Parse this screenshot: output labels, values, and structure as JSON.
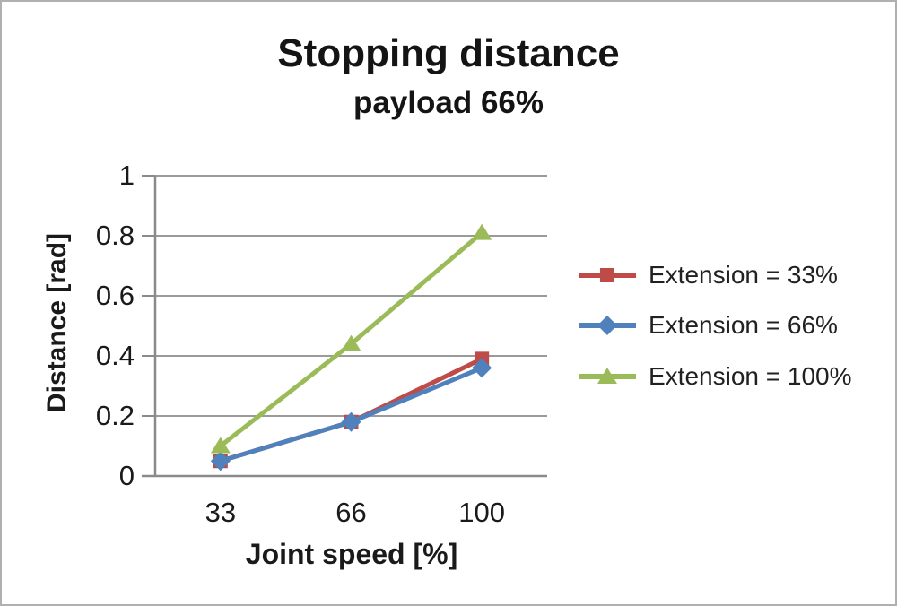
{
  "chart_data": {
    "type": "line",
    "title": "Stopping distance",
    "subtitle": "payload 66%",
    "xlabel": "Joint speed [%]",
    "ylabel": "Distance [rad]",
    "categories": [
      "33",
      "66",
      "100"
    ],
    "ylim": [
      0,
      1
    ],
    "ytick_values": [
      0,
      0.2,
      0.4,
      0.6,
      0.8,
      1
    ],
    "ytick_labels": [
      "0",
      "0.2",
      "0.4",
      "0.6",
      "0.8",
      "1"
    ],
    "grid": true,
    "legend_position": "right",
    "series": [
      {
        "name": "Extension = 33%",
        "marker": "square",
        "color": "#BE4B48",
        "values": [
          0.05,
          0.18,
          0.39
        ]
      },
      {
        "name": "Extension = 66%",
        "marker": "diamond",
        "color": "#4F81BD",
        "values": [
          0.05,
          0.18,
          0.36
        ]
      },
      {
        "name": "Extension = 100%",
        "marker": "triangle",
        "color": "#9BBB59",
        "values": [
          0.1,
          0.44,
          0.81
        ]
      }
    ],
    "colors": {
      "axis": "#8a8a8a",
      "gridline": "#9a9a9a",
      "text": "#1a1a1a"
    }
  }
}
